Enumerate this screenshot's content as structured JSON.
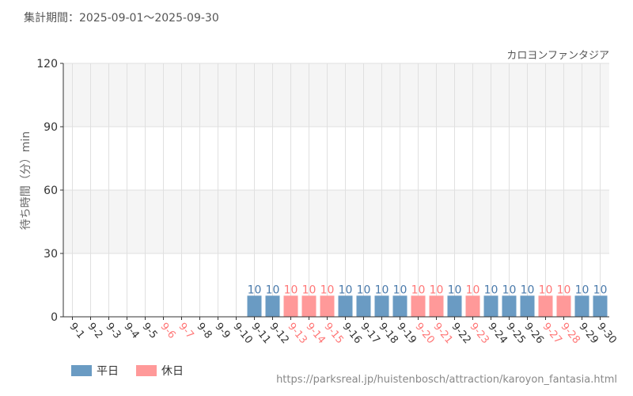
{
  "period_label": "集計期間：2025-09-01～2025-09-30",
  "source_url": "https://parksreal.jp/huistenbosch/attraction/karoyon_fantasia.html",
  "colors": {
    "weekday": "#6a9bc3",
    "holiday": "#ff9999",
    "weekday_label": "#4a7aab",
    "holiday_label": "#ff7777",
    "band": "#f5f5f5",
    "grid": "#e0e0e0",
    "axis": "#333333"
  },
  "chart_data": {
    "type": "bar",
    "title": "カロヨンファンタジア",
    "ylabel": "待ち時間（分）min",
    "ylim": [
      0,
      120
    ],
    "yticks": [
      0,
      30,
      60,
      90,
      120
    ],
    "categories": [
      "9-1",
      "9-2",
      "9-3",
      "9-4",
      "9-5",
      "9-6",
      "9-7",
      "9-8",
      "9-9",
      "9-10",
      "9-11",
      "9-12",
      "9-13",
      "9-14",
      "9-15",
      "9-16",
      "9-17",
      "9-18",
      "9-19",
      "9-20",
      "9-21",
      "9-22",
      "9-23",
      "9-24",
      "9-25",
      "9-26",
      "9-27",
      "9-28",
      "9-29",
      "9-30"
    ],
    "values": [
      null,
      null,
      null,
      null,
      null,
      null,
      null,
      null,
      null,
      null,
      10,
      10,
      10,
      10,
      10,
      10,
      10,
      10,
      10,
      10,
      10,
      10,
      10,
      10,
      10,
      10,
      10,
      10,
      10,
      10
    ],
    "day_type": [
      "weekday",
      "weekday",
      "weekday",
      "weekday",
      "weekday",
      "holiday",
      "holiday",
      "weekday",
      "weekday",
      "weekday",
      "weekday",
      "weekday",
      "holiday",
      "holiday",
      "holiday",
      "weekday",
      "weekday",
      "weekday",
      "weekday",
      "holiday",
      "holiday",
      "weekday",
      "holiday",
      "weekday",
      "weekday",
      "weekday",
      "holiday",
      "holiday",
      "weekday",
      "weekday"
    ],
    "legend": [
      {
        "key": "weekday",
        "label": "平日"
      },
      {
        "key": "holiday",
        "label": "休日"
      }
    ],
    "legend_position": "bottom-left",
    "grid": true
  }
}
